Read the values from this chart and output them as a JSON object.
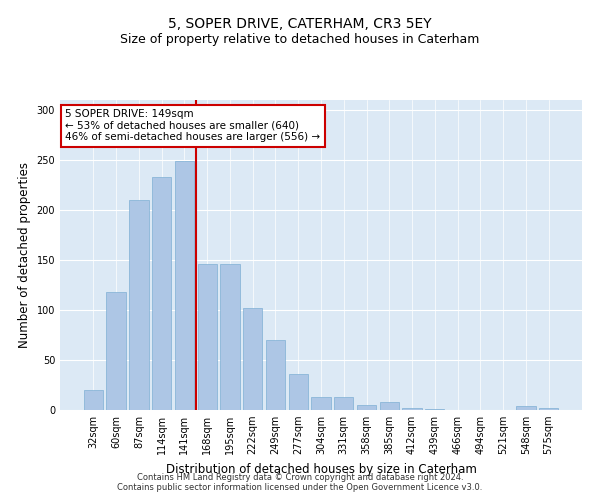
{
  "title": "5, SOPER DRIVE, CATERHAM, CR3 5EY",
  "subtitle": "Size of property relative to detached houses in Caterham",
  "xlabel": "Distribution of detached houses by size in Caterham",
  "ylabel": "Number of detached properties",
  "categories": [
    "32sqm",
    "60sqm",
    "87sqm",
    "114sqm",
    "141sqm",
    "168sqm",
    "195sqm",
    "222sqm",
    "249sqm",
    "277sqm",
    "304sqm",
    "331sqm",
    "358sqm",
    "385sqm",
    "412sqm",
    "439sqm",
    "466sqm",
    "494sqm",
    "521sqm",
    "548sqm",
    "575sqm"
  ],
  "values": [
    20,
    118,
    210,
    233,
    249,
    146,
    146,
    102,
    70,
    36,
    13,
    13,
    5,
    8,
    2,
    1,
    0,
    0,
    0,
    4,
    2
  ],
  "bar_color": "#adc6e5",
  "bar_edge_color": "#7fafd4",
  "vline_x": 4.5,
  "vline_color": "#cc0000",
  "annotation_text": "5 SOPER DRIVE: 149sqm\n← 53% of detached houses are smaller (640)\n46% of semi-detached houses are larger (556) →",
  "annotation_box_color": "#ffffff",
  "annotation_box_edge": "#cc0000",
  "plot_background": "#dce9f5",
  "title_fontsize": 10,
  "subtitle_fontsize": 9,
  "xlabel_fontsize": 8.5,
  "ylabel_fontsize": 8.5,
  "annot_fontsize": 7.5,
  "tick_fontsize": 7,
  "footer_line1": "Contains HM Land Registry data © Crown copyright and database right 2024.",
  "footer_line2": "Contains public sector information licensed under the Open Government Licence v3.0.",
  "ylim": [
    0,
    310
  ],
  "yticks": [
    0,
    50,
    100,
    150,
    200,
    250,
    300
  ]
}
